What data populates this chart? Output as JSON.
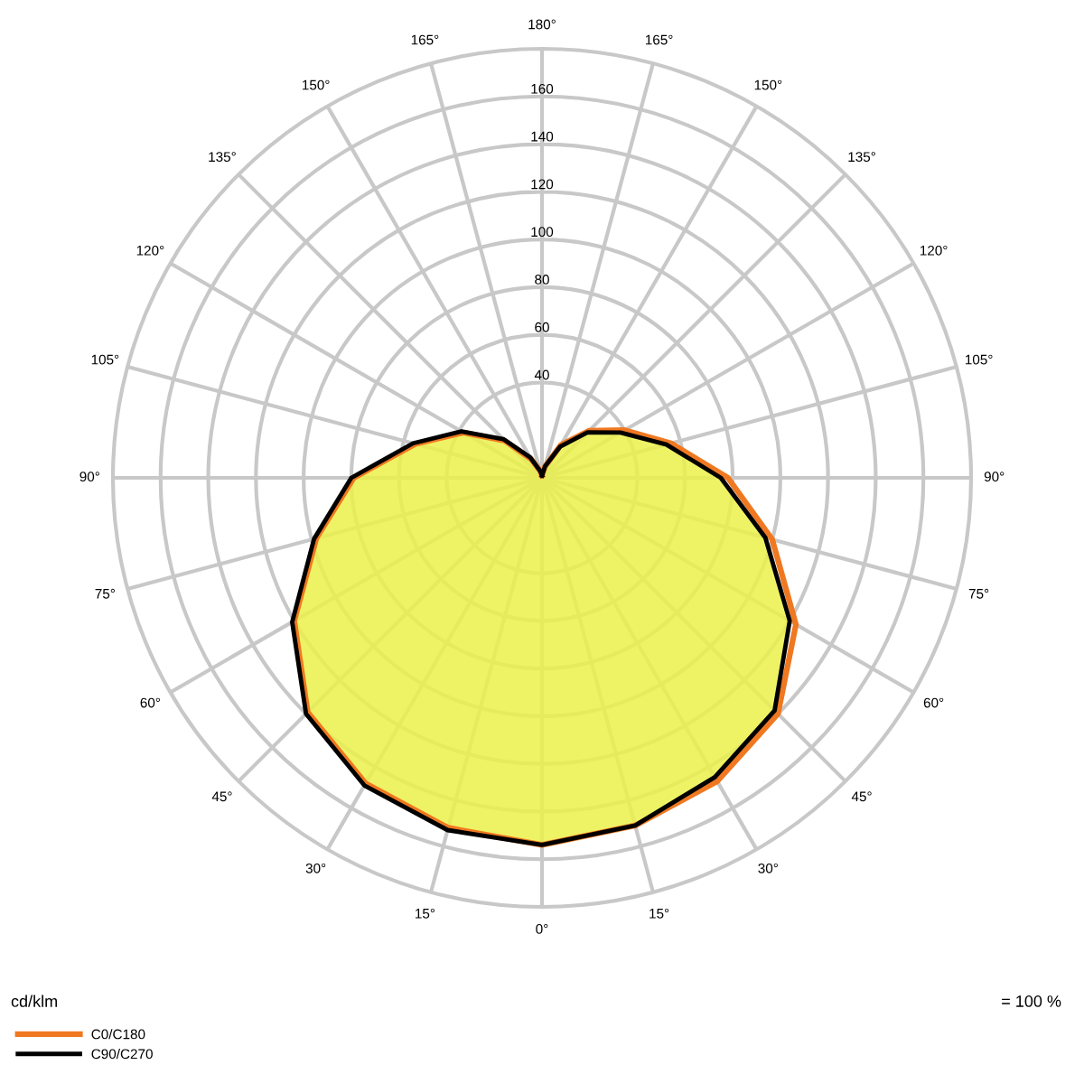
{
  "chart_data": {
    "type": "radar",
    "ylabel": "cd/klm",
    "annotations": [
      "= 100 %"
    ],
    "categories": [
      "180°",
      "165°",
      "150°",
      "135°",
      "120°",
      "105°",
      "90°",
      "75°",
      "60°",
      "45°",
      "30°",
      "15°",
      "0°",
      "15°",
      "30°",
      "45°",
      "60°",
      "75°",
      "90°",
      "105°",
      "120°",
      "135°",
      "150°",
      "165°"
    ],
    "series": [
      {
        "name": "C0/C180",
        "color": "#f07820",
        "values": [
          1,
          5,
          16,
          28,
          40,
          56,
          78,
          100,
          123,
          140,
          147,
          151,
          154,
          152,
          148,
          139,
          120,
          98,
          79,
          55,
          38,
          22,
          9,
          3
        ]
      },
      {
        "name": "C90/C270",
        "color": "#000000",
        "values": [
          1,
          5,
          15,
          27,
          38,
          54,
          75,
          97,
          120,
          138,
          145,
          151,
          154,
          153,
          149,
          140,
          121,
          99,
          80,
          56,
          39,
          23,
          10,
          3
        ]
      }
    ],
    "ylim": [
      0,
      180
    ],
    "yticks": [
      40,
      60,
      80,
      100,
      120,
      140,
      160
    ],
    "grid": true,
    "legend": "bottom left"
  }
}
